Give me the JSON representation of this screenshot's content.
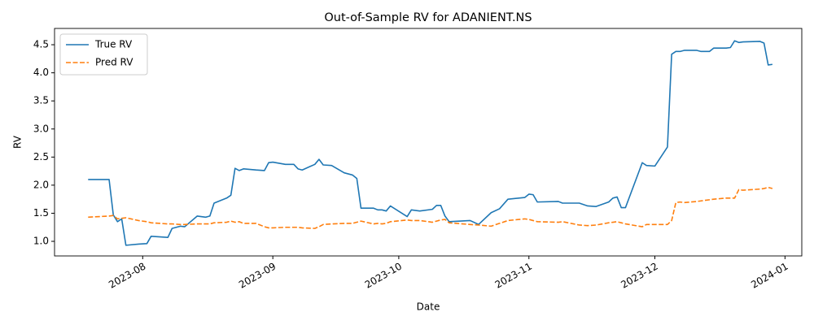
{
  "chart_data": {
    "type": "line",
    "title": "Out-of-Sample RV for ADANIENT.NS",
    "x_label": "Date",
    "y_label": "RV",
    "x": [
      "2023-07-19",
      "2023-07-24",
      "2023-07-25",
      "2023-07-26",
      "2023-07-27",
      "2023-07-28",
      "2023-07-31",
      "2023-08-02",
      "2023-08-03",
      "2023-08-07",
      "2023-08-08",
      "2023-08-10",
      "2023-08-11",
      "2023-08-14",
      "2023-08-16",
      "2023-08-17",
      "2023-08-18",
      "2023-08-21",
      "2023-08-22",
      "2023-08-23",
      "2023-08-24",
      "2023-08-25",
      "2023-08-28",
      "2023-08-30",
      "2023-08-31",
      "2023-09-01",
      "2023-09-04",
      "2023-09-06",
      "2023-09-07",
      "2023-09-08",
      "2023-09-11",
      "2023-09-12",
      "2023-09-13",
      "2023-09-15",
      "2023-09-18",
      "2023-09-20",
      "2023-09-21",
      "2023-09-22",
      "2023-09-25",
      "2023-09-26",
      "2023-09-27",
      "2023-09-28",
      "2023-09-29",
      "2023-10-03",
      "2023-10-04",
      "2023-10-06",
      "2023-10-09",
      "2023-10-10",
      "2023-10-11",
      "2023-10-12",
      "2023-10-13",
      "2023-10-18",
      "2023-10-20",
      "2023-10-23",
      "2023-10-25",
      "2023-10-27",
      "2023-10-31",
      "2023-11-01",
      "2023-11-02",
      "2023-11-03",
      "2023-11-08",
      "2023-11-09",
      "2023-11-13",
      "2023-11-15",
      "2023-11-17",
      "2023-11-20",
      "2023-11-21",
      "2023-11-22",
      "2023-11-23",
      "2023-11-24",
      "2023-11-28",
      "2023-11-29",
      "2023-12-01",
      "2023-12-04",
      "2023-12-05",
      "2023-12-06",
      "2023-12-07",
      "2023-12-08",
      "2023-12-11",
      "2023-12-12",
      "2023-12-14",
      "2023-12-15",
      "2023-12-18",
      "2023-12-19",
      "2023-12-20",
      "2023-12-21",
      "2023-12-22",
      "2023-12-26",
      "2023-12-27",
      "2023-12-28",
      "2023-12-29"
    ],
    "series": [
      {
        "name": "True RV",
        "color": "#1f77b4",
        "style": "solid",
        "values": [
          2.1,
          2.1,
          1.47,
          1.35,
          1.4,
          0.93,
          0.95,
          0.96,
          1.09,
          1.07,
          1.23,
          1.27,
          1.26,
          1.45,
          1.43,
          1.45,
          1.68,
          1.77,
          1.82,
          2.3,
          2.26,
          2.29,
          2.27,
          2.26,
          2.4,
          2.41,
          2.37,
          2.37,
          2.29,
          2.27,
          2.37,
          2.46,
          2.36,
          2.35,
          2.22,
          2.18,
          2.12,
          1.59,
          1.59,
          1.56,
          1.56,
          1.54,
          1.63,
          1.44,
          1.56,
          1.54,
          1.57,
          1.64,
          1.64,
          1.45,
          1.35,
          1.37,
          1.3,
          1.51,
          1.58,
          1.75,
          1.78,
          1.84,
          1.83,
          1.7,
          1.71,
          1.68,
          1.68,
          1.63,
          1.62,
          1.7,
          1.77,
          1.79,
          1.6,
          1.6,
          2.4,
          2.35,
          2.34,
          2.68,
          4.33,
          4.38,
          4.38,
          4.4,
          4.4,
          4.38,
          4.38,
          4.44,
          4.44,
          4.45,
          4.57,
          4.54,
          4.55,
          4.56,
          4.53,
          4.14,
          4.15
        ]
      },
      {
        "name": "Pred RV",
        "color": "#ff7f0e",
        "style": "dashed",
        "values": [
          1.43,
          1.45,
          1.46,
          1.4,
          1.41,
          1.42,
          1.37,
          1.35,
          1.33,
          1.31,
          1.31,
          1.3,
          1.3,
          1.31,
          1.31,
          1.31,
          1.33,
          1.34,
          1.36,
          1.34,
          1.35,
          1.32,
          1.32,
          1.26,
          1.24,
          1.24,
          1.25,
          1.25,
          1.25,
          1.24,
          1.23,
          1.26,
          1.3,
          1.31,
          1.32,
          1.32,
          1.34,
          1.36,
          1.31,
          1.32,
          1.31,
          1.32,
          1.35,
          1.38,
          1.37,
          1.37,
          1.34,
          1.36,
          1.38,
          1.39,
          1.33,
          1.3,
          1.29,
          1.27,
          1.32,
          1.37,
          1.4,
          1.39,
          1.37,
          1.35,
          1.34,
          1.35,
          1.29,
          1.28,
          1.29,
          1.33,
          1.34,
          1.35,
          1.33,
          1.31,
          1.26,
          1.3,
          1.3,
          1.3,
          1.37,
          1.69,
          1.7,
          1.69,
          1.71,
          1.72,
          1.74,
          1.75,
          1.77,
          1.77,
          1.77,
          1.92,
          1.91,
          1.93,
          1.94,
          1.96,
          1.94
        ]
      }
    ],
    "xlim": [
      "2023-07-11",
      "2024-01-05"
    ],
    "xticks": [
      {
        "value": "2023-08-01",
        "label": "2023-08"
      },
      {
        "value": "2023-09-01",
        "label": "2023-09"
      },
      {
        "value": "2023-10-01",
        "label": "2023-10"
      },
      {
        "value": "2023-11-01",
        "label": "2023-11"
      },
      {
        "value": "2023-12-01",
        "label": "2023-12"
      },
      {
        "value": "2024-01-01",
        "label": "2024-01"
      }
    ],
    "ylim": [
      0.74,
      4.79
    ],
    "yticks": [
      {
        "value": 1,
        "label": "1.0"
      },
      {
        "value": 1.5,
        "label": "1.5"
      },
      {
        "value": 2,
        "label": "2.0"
      },
      {
        "value": 2.5,
        "label": "2.5"
      },
      {
        "value": 3,
        "label": "3.0"
      },
      {
        "value": 3.5,
        "label": "3.5"
      },
      {
        "value": 4,
        "label": "4.0"
      },
      {
        "value": 4.5,
        "label": "4.5"
      }
    ],
    "grid": false,
    "legend": "upper left"
  }
}
